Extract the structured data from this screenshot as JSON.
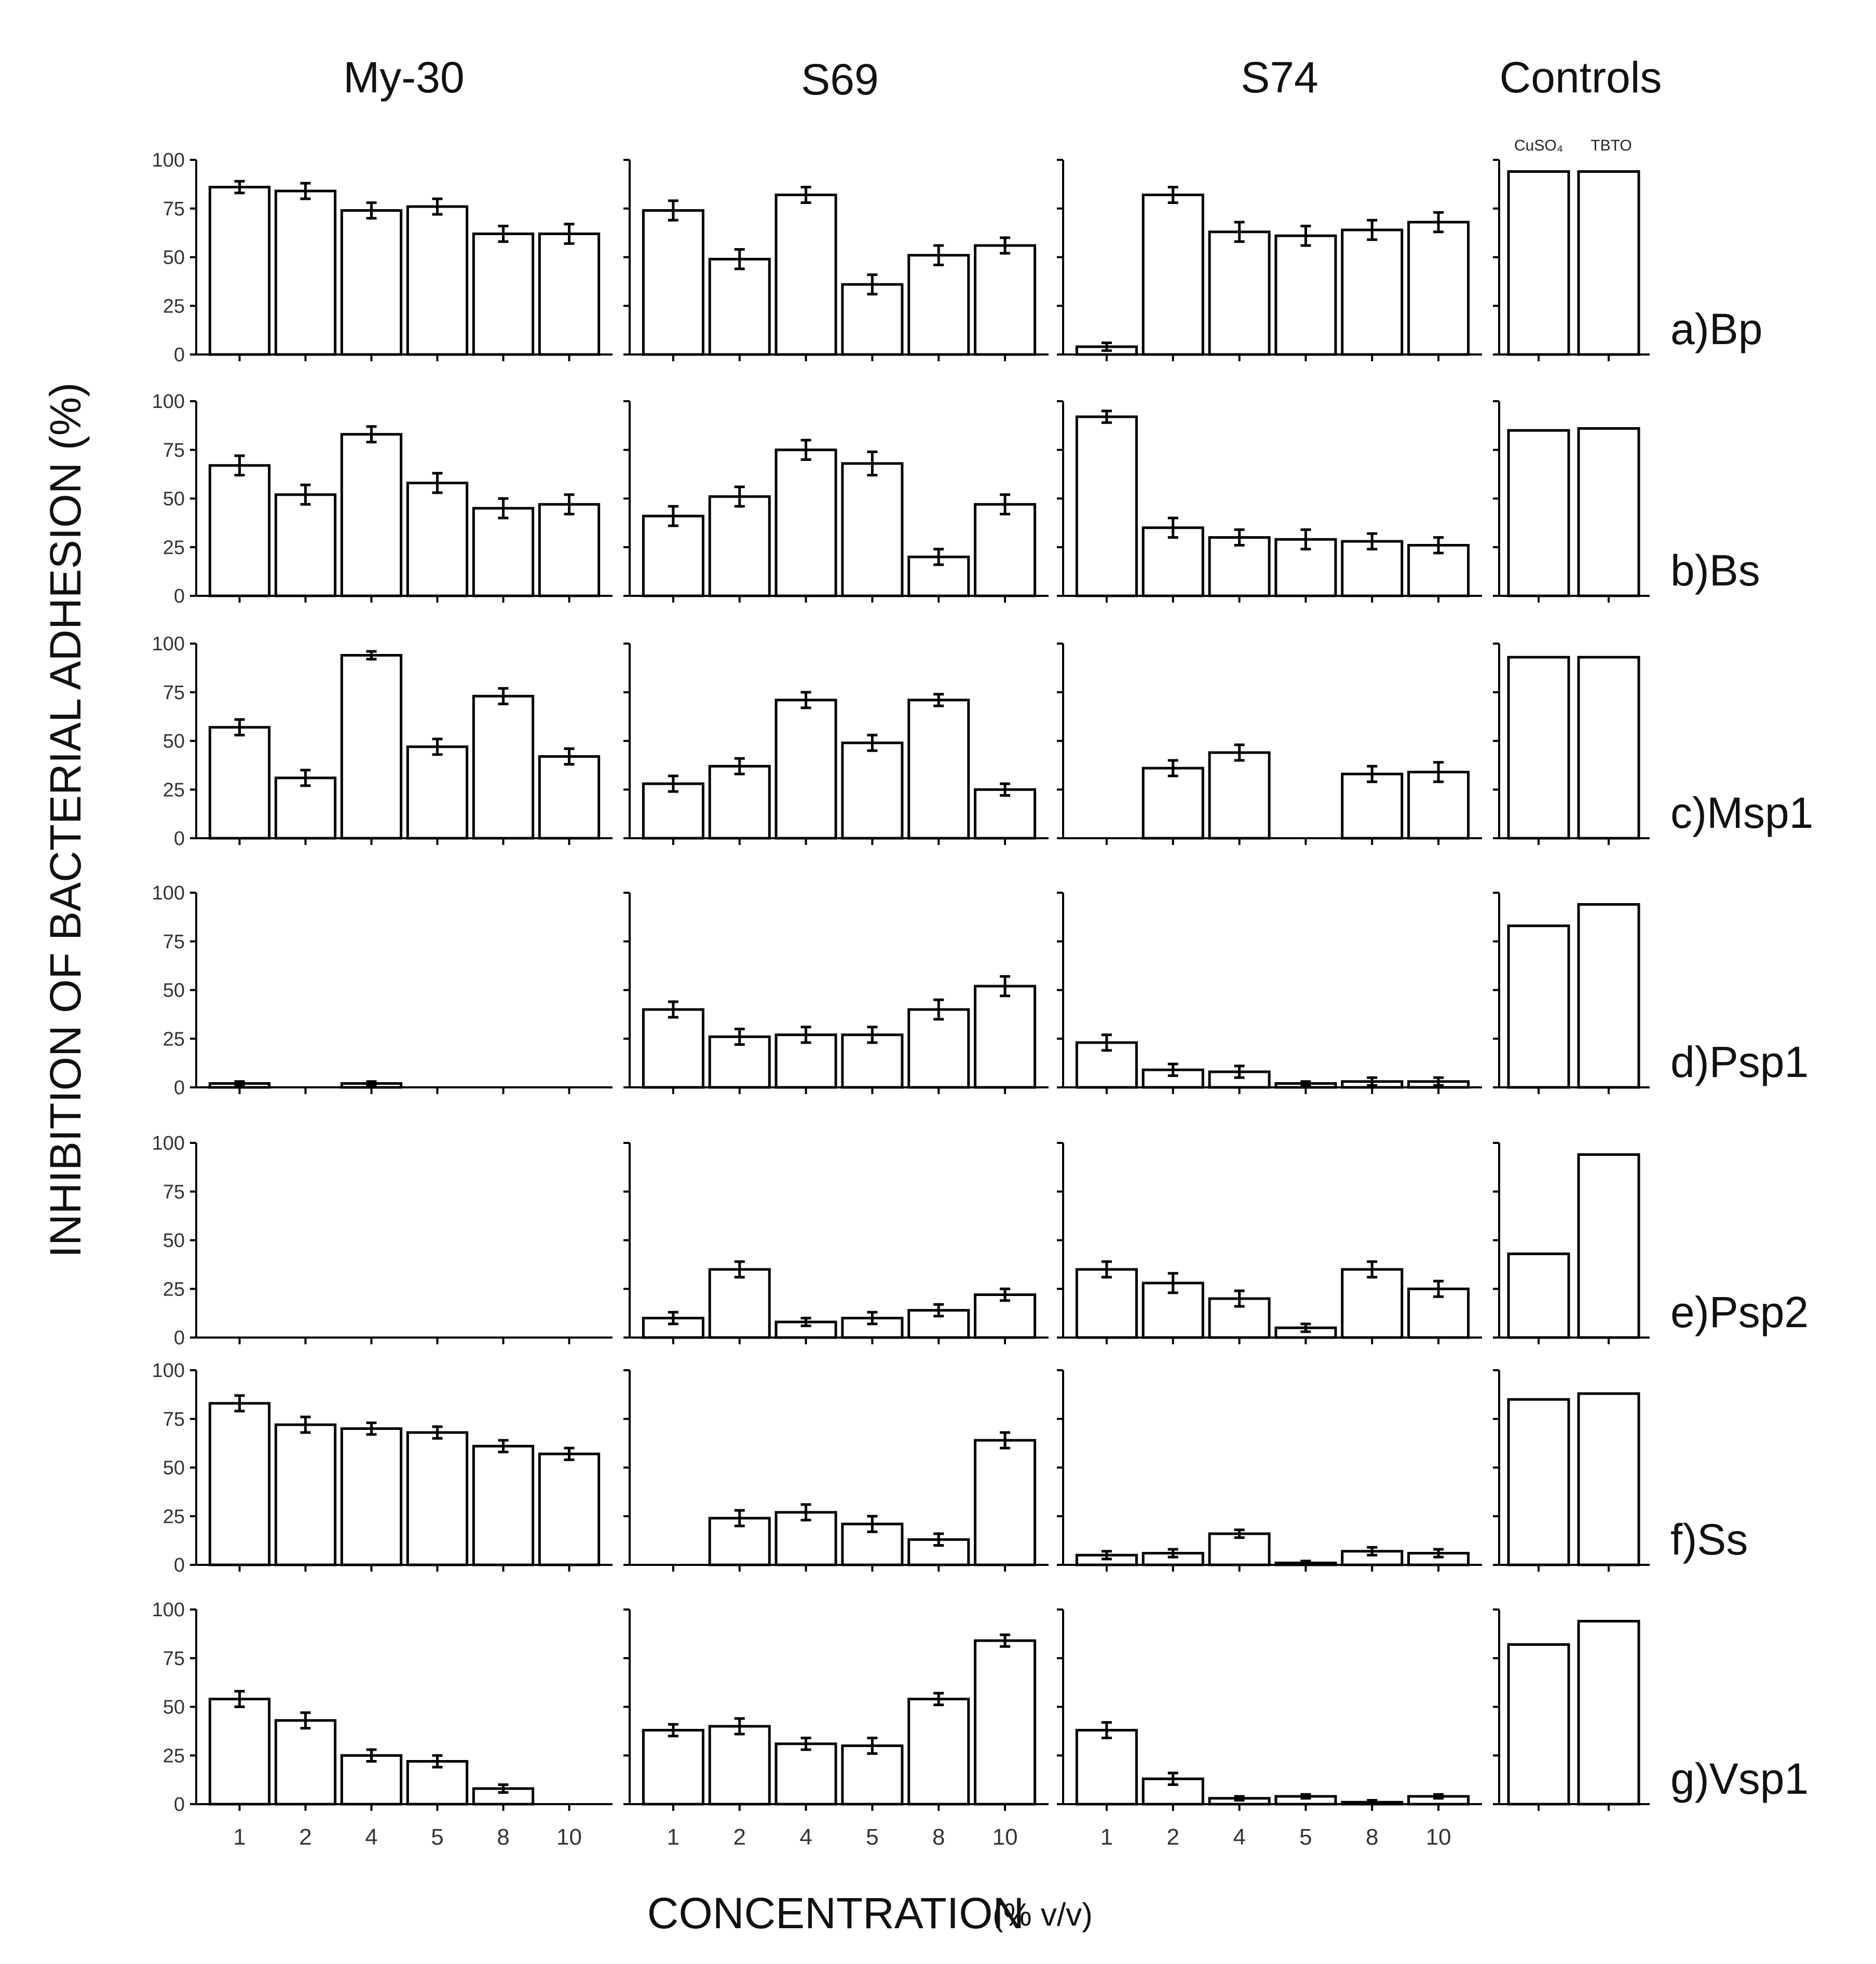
{
  "chart_data": {
    "type": "bar",
    "y_axis_title": "INHIBITION OF BACTERIAL ADHESION (%)",
    "x_axis_title": "CONCENTRATION",
    "x_axis_unit": "(% v/v)",
    "ylim": [
      0,
      100
    ],
    "yticks": [
      "0",
      "25",
      "50",
      "75",
      "100"
    ],
    "categories": [
      "1",
      "2",
      "4",
      "5",
      "8",
      "10"
    ],
    "columns": [
      "My-30",
      "S69",
      "S74",
      "Controls"
    ],
    "control_categories": [
      "CuSO₄",
      "TBTO"
    ],
    "rows": [
      {
        "label": "a)Bp",
        "series": [
          {
            "name": "My-30",
            "values": [
              86,
              84,
              74,
              76,
              62,
              62
            ],
            "errors": [
              3,
              4,
              4,
              4,
              4,
              5
            ]
          },
          {
            "name": "S69",
            "values": [
              74,
              49,
              82,
              36,
              51,
              56
            ],
            "errors": [
              5,
              5,
              4,
              5,
              5,
              4
            ]
          },
          {
            "name": "S74",
            "values": [
              4,
              82,
              63,
              61,
              64,
              68
            ],
            "errors": [
              2,
              4,
              5,
              5,
              5,
              5
            ]
          }
        ],
        "controls": [
          94,
          94
        ]
      },
      {
        "label": "b)Bs",
        "series": [
          {
            "name": "My-30",
            "values": [
              67,
              52,
              83,
              58,
              45,
              47
            ],
            "errors": [
              5,
              5,
              4,
              5,
              5,
              5
            ]
          },
          {
            "name": "S69",
            "values": [
              41,
              51,
              75,
              68,
              20,
              47
            ],
            "errors": [
              5,
              5,
              5,
              6,
              4,
              5
            ]
          },
          {
            "name": "S74",
            "values": [
              92,
              35,
              30,
              29,
              28,
              26
            ],
            "errors": [
              3,
              5,
              4,
              5,
              4,
              4
            ]
          }
        ],
        "controls": [
          85,
          86
        ]
      },
      {
        "label": "c)Msp1",
        "series": [
          {
            "name": "My-30",
            "values": [
              57,
              31,
              94,
              47,
              73,
              42
            ],
            "errors": [
              4,
              4,
              2,
              4,
              4,
              4
            ]
          },
          {
            "name": "S69",
            "values": [
              28,
              37,
              71,
              49,
              71,
              25
            ],
            "errors": [
              4,
              4,
              4,
              4,
              3,
              3
            ]
          },
          {
            "name": "S74",
            "values": [
              0,
              36,
              44,
              0,
              33,
              34
            ],
            "errors": [
              0,
              4,
              4,
              0,
              4,
              5
            ]
          }
        ],
        "controls": [
          93,
          93
        ]
      },
      {
        "label": "d)Psp1",
        "series": [
          {
            "name": "My-30",
            "values": [
              2,
              0,
              2,
              0,
              0,
              0
            ],
            "errors": [
              1,
              0,
              1,
              0,
              0,
              0
            ]
          },
          {
            "name": "S69",
            "values": [
              40,
              26,
              27,
              27,
              40,
              52
            ],
            "errors": [
              4,
              4,
              4,
              4,
              5,
              5
            ]
          },
          {
            "name": "S74",
            "values": [
              23,
              9,
              8,
              2,
              3,
              3
            ],
            "errors": [
              4,
              3,
              3,
              1,
              2,
              2
            ]
          }
        ],
        "controls": [
          83,
          94
        ]
      },
      {
        "label": "e)Psp2",
        "series": [
          {
            "name": "My-30",
            "values": [
              0,
              0,
              0,
              0,
              0,
              0
            ],
            "errors": [
              0,
              0,
              0,
              0,
              0,
              0
            ]
          },
          {
            "name": "S69",
            "values": [
              10,
              35,
              8,
              10,
              14,
              22
            ],
            "errors": [
              3,
              4,
              2,
              3,
              3,
              3
            ]
          },
          {
            "name": "S74",
            "values": [
              35,
              28,
              20,
              5,
              35,
              25
            ],
            "errors": [
              4,
              5,
              4,
              2,
              4,
              4
            ]
          }
        ],
        "controls": [
          43,
          94
        ]
      },
      {
        "label": "f)Ss",
        "series": [
          {
            "name": "My-30",
            "values": [
              83,
              72,
              70,
              68,
              61,
              57
            ],
            "errors": [
              4,
              4,
              3,
              3,
              3,
              3
            ]
          },
          {
            "name": "S69",
            "values": [
              0,
              24,
              27,
              21,
              13,
              64
            ],
            "errors": [
              0,
              4,
              4,
              4,
              3,
              4
            ]
          },
          {
            "name": "S74",
            "values": [
              5,
              6,
              16,
              1,
              7,
              6
            ],
            "errors": [
              2,
              2,
              2,
              1,
              2,
              2
            ]
          }
        ],
        "controls": [
          85,
          88
        ]
      },
      {
        "label": "g)Vsp1",
        "series": [
          {
            "name": "My-30",
            "values": [
              54,
              43,
              25,
              22,
              8,
              0
            ],
            "errors": [
              4,
              4,
              3,
              3,
              2,
              0
            ]
          },
          {
            "name": "S69",
            "values": [
              38,
              40,
              31,
              30,
              54,
              84
            ],
            "errors": [
              3,
              4,
              3,
              4,
              3,
              3
            ]
          },
          {
            "name": "S74",
            "values": [
              38,
              13,
              3,
              4,
              1,
              4
            ],
            "errors": [
              4,
              3,
              1,
              1,
              1,
              1
            ]
          }
        ],
        "controls": [
          82,
          94
        ]
      }
    ]
  }
}
